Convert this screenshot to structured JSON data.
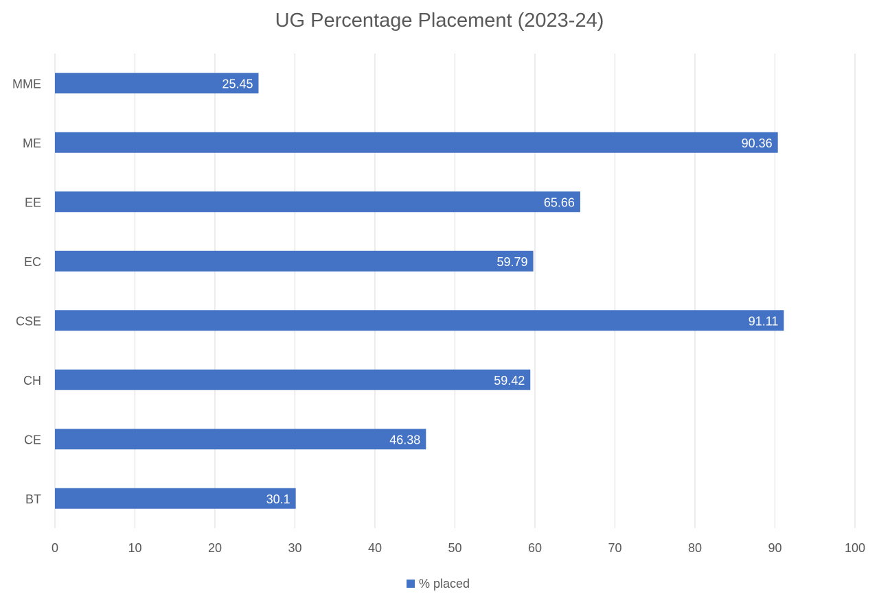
{
  "chart_data": {
    "type": "bar",
    "orientation": "horizontal",
    "title": "UG Percentage Placement (2023-24)",
    "categories": [
      "BT",
      "CE",
      "CH",
      "CSE",
      "EC",
      "EE",
      "ME",
      "MME"
    ],
    "series": [
      {
        "name": "% placed",
        "values": [
          30.1,
          46.38,
          59.42,
          91.11,
          59.79,
          65.66,
          90.36,
          25.45
        ],
        "data_labels": [
          "30.1",
          "46.38",
          "59.42",
          "91.11",
          "59.79",
          "65.66",
          "90.36",
          "25.45"
        ],
        "color": "#4472c4"
      }
    ],
    "xlim": [
      0,
      100
    ],
    "x_ticks": [
      0,
      10,
      20,
      30,
      40,
      50,
      60,
      70,
      80,
      90,
      100
    ],
    "grid": true,
    "legend_position": "bottom",
    "gridline_color": "#d9d9d9",
    "text_color": "#595959",
    "data_label_color": "#ffffff"
  }
}
